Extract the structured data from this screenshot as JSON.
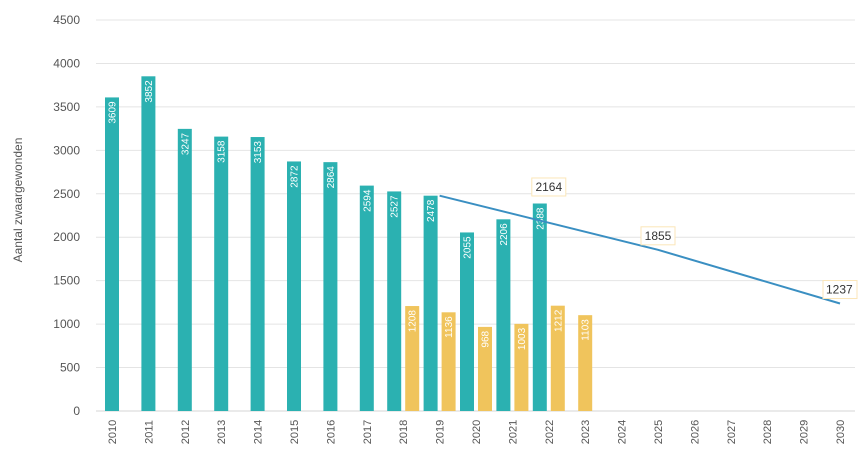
{
  "chart_data": {
    "type": "bar",
    "title": "",
    "ylabel": "Aantal zwaargewonden",
    "xlabel": "",
    "ylim": [
      0,
      4500
    ],
    "yticks": [
      0,
      500,
      1000,
      1500,
      2000,
      2500,
      3000,
      3500,
      4000,
      4500
    ],
    "categories": [
      "2010",
      "2011",
      "2012",
      "2013",
      "2014",
      "2015",
      "2016",
      "2017",
      "2018",
      "2019",
      "2020",
      "2021",
      "2022",
      "2023",
      "2024",
      "2025",
      "2026",
      "2027",
      "2028",
      "2029",
      "2030"
    ],
    "grid": true,
    "colors": {
      "series_1": "#2bb1b1",
      "series_2": "#f0c45c",
      "target_line": "#3a8fc2",
      "grid": "#e4e4e4",
      "annotation_box": "#fbe6b8"
    },
    "series": [
      {
        "values": [
          3609,
          3852,
          3247,
          3158,
          3153,
          2872,
          2864,
          2594,
          2527,
          2478,
          2055,
          2206,
          2388,
          null,
          null,
          null,
          null,
          null,
          null,
          null,
          null
        ],
        "labels": [
          "3609",
          "3852",
          "3247",
          "3158",
          "3153",
          "2872",
          "2864",
          "2594",
          "2527",
          "2478",
          "2055",
          "2206",
          "2388",
          "",
          "",
          "",
          "",
          "",
          "",
          "",
          ""
        ]
      },
      {
        "values": [
          null,
          null,
          null,
          null,
          null,
          null,
          null,
          null,
          1208,
          1136,
          968,
          1003,
          1212,
          1103,
          null,
          null,
          null,
          null,
          null,
          null,
          null
        ],
        "labels": [
          "",
          "",
          "",
          "",
          "",
          "",
          "",
          "",
          "1208",
          "1136",
          "968",
          "1003",
          "1212",
          "1103",
          "",
          "",
          "",
          "",
          "",
          "",
          ""
        ]
      }
    ],
    "target_line": {
      "points": [
        {
          "x": "2019",
          "y": 2478
        },
        {
          "x": "2025",
          "y": 1855
        },
        {
          "x": "2030",
          "y": 1237
        }
      ]
    },
    "annotations": [
      {
        "x": "2022",
        "y": 2164,
        "text": "2164"
      },
      {
        "x": "2025",
        "y": 1855,
        "text": "1855"
      },
      {
        "x": "2030",
        "y": 1237,
        "text": "1237"
      }
    ]
  }
}
